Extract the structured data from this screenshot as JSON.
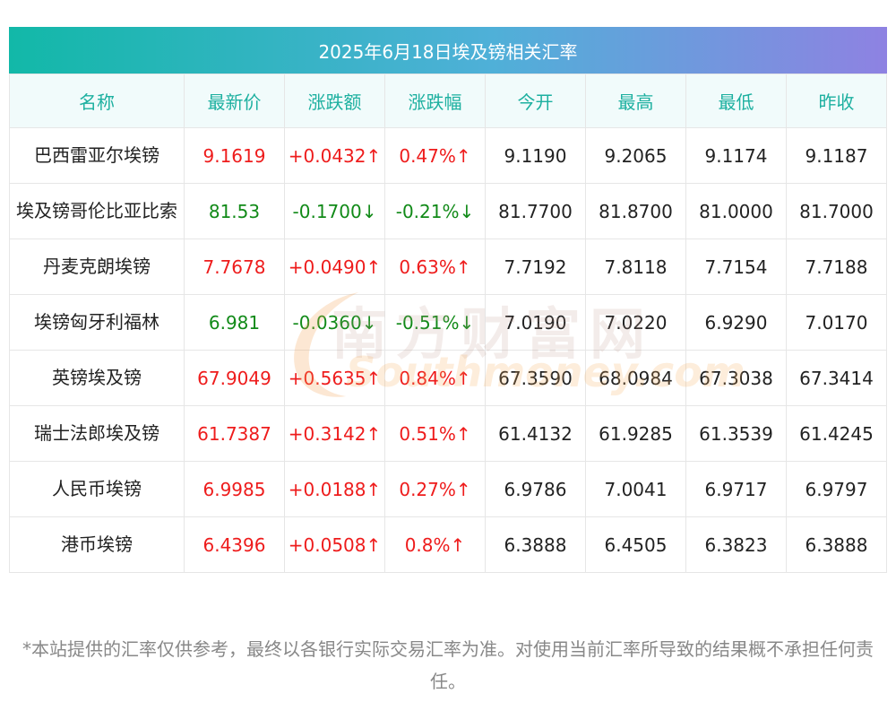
{
  "title": "2025年6月18日埃及镑相关汇率",
  "headers": [
    "名称",
    "最新价",
    "涨跌额",
    "涨跌幅",
    "今开",
    "最高",
    "最低",
    "昨收"
  ],
  "rows": [
    {
      "name": "巴西雷亚尔埃镑",
      "latest": "9.1619",
      "change": "+0.0432↑",
      "pct": "0.47%↑",
      "open": "9.1190",
      "high": "9.2065",
      "low": "9.1174",
      "prev": "9.1187",
      "trend": "up"
    },
    {
      "name": "埃及镑哥伦比亚比索",
      "latest": "81.53",
      "change": "-0.1700↓",
      "pct": "-0.21%↓",
      "open": "81.7700",
      "high": "81.8700",
      "low": "81.0000",
      "prev": "81.7000",
      "trend": "down"
    },
    {
      "name": "丹麦克朗埃镑",
      "latest": "7.7678",
      "change": "+0.0490↑",
      "pct": "0.63%↑",
      "open": "7.7192",
      "high": "7.8118",
      "low": "7.7154",
      "prev": "7.7188",
      "trend": "up"
    },
    {
      "name": "埃镑匈牙利福林",
      "latest": "6.981",
      "change": "-0.0360↓",
      "pct": "-0.51%↓",
      "open": "7.0190",
      "high": "7.0220",
      "low": "6.9290",
      "prev": "7.0170",
      "trend": "down"
    },
    {
      "name": "英镑埃及镑",
      "latest": "67.9049",
      "change": "+0.5635↑",
      "pct": "0.84%↑",
      "open": "67.3590",
      "high": "68.0984",
      "low": "67.3038",
      "prev": "67.3414",
      "trend": "up"
    },
    {
      "name": "瑞士法郎埃及镑",
      "latest": "61.7387",
      "change": "+0.3142↑",
      "pct": "0.51%↑",
      "open": "61.4132",
      "high": "61.9285",
      "low": "61.3539",
      "prev": "61.4245",
      "trend": "up"
    },
    {
      "name": "人民币埃镑",
      "latest": "6.9985",
      "change": "+0.0188↑",
      "pct": "0.27%↑",
      "open": "6.9786",
      "high": "7.0041",
      "low": "6.9717",
      "prev": "6.9797",
      "trend": "up"
    },
    {
      "name": "港币埃镑",
      "latest": "6.4396",
      "change": "+0.0508↑",
      "pct": "0.8%↑",
      "open": "6.3888",
      "high": "6.4505",
      "low": "6.3823",
      "prev": "6.3888",
      "trend": "up"
    }
  ],
  "watermark": {
    "cn": "南方财富网",
    "en": "Southmoney.com"
  },
  "footnote": "*本站提供的汇率仅供参考，最终以各银行实际交易汇率为准。对使用当前汇率所导致的结果概不承担任何责任。",
  "colors": {
    "up": "#ee1c1c",
    "down": "#118a18",
    "header_text": "#1db0a0",
    "header_bg": "#f1fbfb"
  }
}
